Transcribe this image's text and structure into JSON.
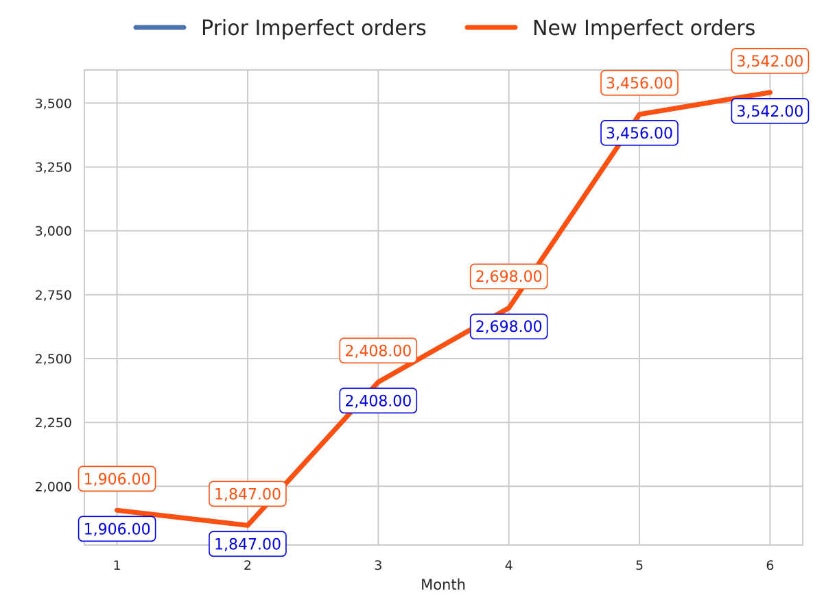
{
  "chart_data": {
    "type": "line",
    "x": [
      1,
      2,
      3,
      4,
      5,
      6
    ],
    "xlabel": "Month",
    "ylabel": "",
    "xlim": [
      0.75,
      6.25
    ],
    "ylim": [
      1770,
      3630
    ],
    "yticks": [
      2000,
      2250,
      2500,
      2750,
      3000,
      3250,
      3500
    ],
    "ytick_labels": [
      "2,000",
      "2,250",
      "2,500",
      "2,750",
      "3,000",
      "3,250",
      "3,500"
    ],
    "xtick_labels": [
      "1",
      "2",
      "3",
      "4",
      "5",
      "6"
    ],
    "grid": true,
    "legend_position": "top-center",
    "series": [
      {
        "name": "Prior Imperfect orders",
        "color": "#4c72b0",
        "label_color": "#0000dd",
        "label_position": "below",
        "values": [
          1906,
          1847,
          2408,
          2698,
          3456,
          3542
        ],
        "labels": [
          "1,906.00",
          "1,847.00",
          "2,408.00",
          "2,698.00",
          "3,456.00",
          "3,542.00"
        ]
      },
      {
        "name": "New Imperfect orders",
        "color": "#ff5010",
        "label_color": "#ff5010",
        "label_position": "above",
        "values": [
          1906,
          1847,
          2408,
          2698,
          3456,
          3542
        ],
        "labels": [
          "1,906.00",
          "1,847.00",
          "2,408.00",
          "2,698.00",
          "3,456.00",
          "3,542.00"
        ]
      }
    ]
  }
}
